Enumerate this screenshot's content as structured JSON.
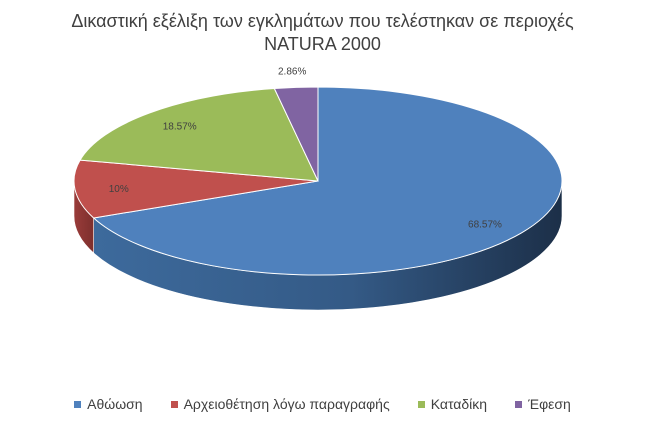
{
  "chart_data": {
    "type": "pie",
    "title_lines": [
      "Δικαστική εξέλιξη των εγκλημάτων που τελέστηκαν σε περιοχές",
      "NATURA 2000"
    ],
    "categories": [
      "Αθώωση",
      "Αρχειοθέτηση λόγω παραγραφής",
      "Καταδίκη",
      "Έφεση"
    ],
    "values": [
      68.57,
      10,
      18.57,
      2.86
    ],
    "data_labels": [
      "68.57%",
      "10%",
      "18.57%",
      "2.86%"
    ],
    "colors": [
      "#4f81bd",
      "#c0504d",
      "#9bbb59",
      "#8064a2"
    ],
    "style": "3d",
    "legend_position": "bottom"
  }
}
